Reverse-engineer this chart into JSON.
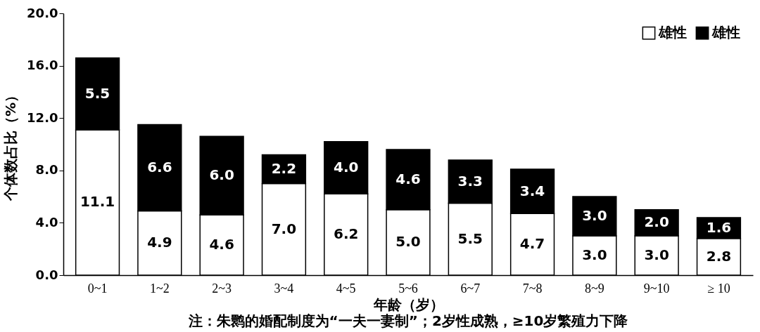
{
  "chart_data": {
    "type": "bar",
    "stacked": true,
    "xlabel": "年龄（岁）",
    "ylabel": "个体数占比（%）",
    "categories": [
      "0~1",
      "1~2",
      "2~3",
      "3~4",
      "4~5",
      "5~6",
      "6~7",
      "7~8",
      "8~9",
      "9~10",
      "≥ 10"
    ],
    "series": [
      {
        "name": "雄性",
        "color": "#ffffff",
        "values": [
          11.1,
          4.9,
          4.6,
          7.0,
          6.2,
          5.0,
          5.5,
          4.7,
          3.0,
          3.0,
          2.8
        ],
        "value_labels": [
          "11.1",
          "4.9",
          "4.6",
          "7.0",
          "6.2",
          "5.0",
          "5.5",
          "4.7",
          "3.0",
          "3.0",
          "2.8"
        ]
      },
      {
        "name": "雄性",
        "color": "#000000",
        "values": [
          5.5,
          6.6,
          6.0,
          2.2,
          4.0,
          4.6,
          3.3,
          3.4,
          3.0,
          2.0,
          1.6
        ],
        "value_labels": [
          "5.5",
          "6.6",
          "6.0",
          "2.2",
          "4.0",
          "4.6",
          "3.3",
          "3.4",
          "3.0",
          "2.0",
          "1.6"
        ]
      }
    ],
    "ylim": [
      0,
      20
    ],
    "yticks": [
      {
        "value": 0,
        "label": "0.0"
      },
      {
        "value": 4,
        "label": "4.0"
      },
      {
        "value": 8,
        "label": "8.0"
      },
      {
        "value": 12,
        "label": "12.0"
      },
      {
        "value": 16,
        "label": "16.0"
      },
      {
        "value": 20,
        "label": "20.0"
      }
    ],
    "grid": false,
    "legend": "top right",
    "annotations": [
      "注：朱鹮的婚配制度为“一夫一妻制”；2岁性成熟，≥10岁繁殖力下降"
    ]
  }
}
